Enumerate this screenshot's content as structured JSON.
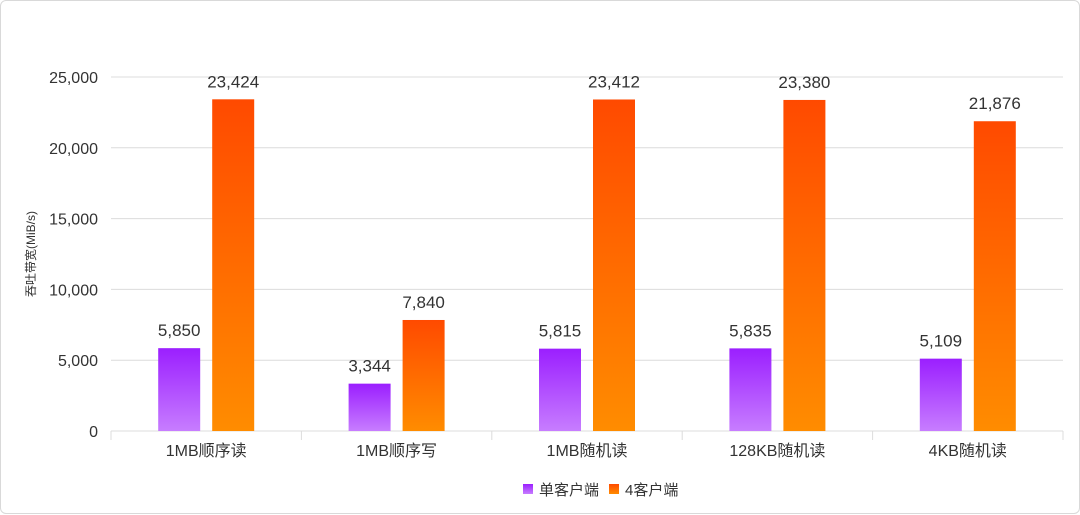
{
  "chart_data": {
    "type": "bar",
    "title": "",
    "xlabel": "",
    "ylabel": "吞吐带宽(MiB/s)",
    "categories": [
      "1MB顺序读",
      "1MB顺序写",
      "1MB随机读",
      "128KB随机读",
      "4KB随机读"
    ],
    "series": [
      {
        "name": "单客户端",
        "values": [
          5850,
          3344,
          5815,
          5835,
          5109
        ],
        "color_top": "#9b1fff",
        "color_bottom": "#c77dff"
      },
      {
        "name": "4客户端",
        "values": [
          23424,
          7840,
          23412,
          23380,
          21876
        ],
        "color_top": "#ff4a00",
        "color_bottom": "#ff8c00"
      }
    ],
    "ylim": [
      0,
      25000
    ],
    "yticks": [
      0,
      5000,
      10000,
      15000,
      20000,
      25000
    ],
    "grid": true,
    "legend_position": "bottom-center",
    "data_labels": true
  }
}
